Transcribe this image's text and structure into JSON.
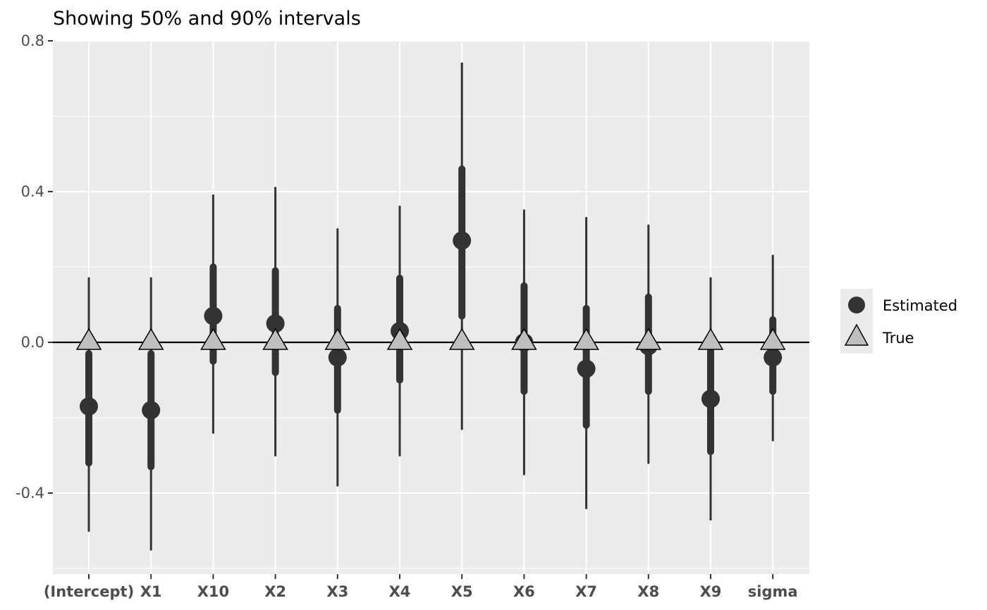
{
  "chart_data": {
    "type": "interval",
    "title": "Showing 50% and 90% intervals",
    "xlabel": "",
    "ylabel": "",
    "ylim": [
      -0.6,
      0.8
    ],
    "yticks": [
      -0.4,
      0.0,
      0.4,
      0.8
    ],
    "ytick_labels": [
      "-0.4",
      "0.0",
      "0.4",
      "0.8"
    ],
    "grid": true,
    "reference_line": 0.0,
    "legend_position": "right",
    "categories": [
      "(Intercept)",
      "X1",
      "X10",
      "X2",
      "X3",
      "X4",
      "X5",
      "X6",
      "X7",
      "X8",
      "X9",
      "sigma"
    ],
    "series": [
      {
        "name": "Estimated",
        "marker": "circle",
        "color": "#333333",
        "values": [
          -0.17,
          -0.18,
          0.07,
          0.05,
          -0.04,
          0.03,
          0.27,
          0.0,
          -0.07,
          -0.01,
          -0.15,
          -0.04
        ],
        "interval_50": [
          [
            -0.32,
            -0.03
          ],
          [
            -0.33,
            -0.03
          ],
          [
            -0.05,
            0.2
          ],
          [
            -0.08,
            0.19
          ],
          [
            -0.18,
            0.09
          ],
          [
            -0.1,
            0.17
          ],
          [
            0.07,
            0.46
          ],
          [
            -0.13,
            0.15
          ],
          [
            -0.22,
            0.09
          ],
          [
            -0.13,
            0.12
          ],
          [
            -0.29,
            -0.02
          ],
          [
            -0.13,
            0.06
          ]
        ],
        "interval_90": [
          [
            -0.5,
            0.17
          ],
          [
            -0.55,
            0.17
          ],
          [
            -0.24,
            0.39
          ],
          [
            -0.3,
            0.41
          ],
          [
            -0.38,
            0.3
          ],
          [
            -0.3,
            0.36
          ],
          [
            -0.23,
            0.74
          ],
          [
            -0.35,
            0.35
          ],
          [
            -0.44,
            0.33
          ],
          [
            -0.32,
            0.31
          ],
          [
            -0.47,
            0.17
          ],
          [
            -0.26,
            0.23
          ]
        ]
      },
      {
        "name": "True",
        "marker": "triangle",
        "color": "#bfbfbf",
        "values": [
          0,
          0,
          0,
          0,
          0,
          0,
          0,
          0,
          0,
          0,
          0,
          0
        ]
      }
    ]
  }
}
